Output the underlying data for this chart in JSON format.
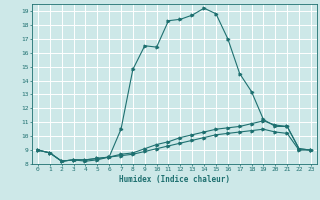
{
  "xlabel": "Humidex (Indice chaleur)",
  "xlim": [
    -0.5,
    23.5
  ],
  "ylim": [
    8.0,
    19.5
  ],
  "yticks": [
    8,
    9,
    10,
    11,
    12,
    13,
    14,
    15,
    16,
    17,
    18,
    19
  ],
  "xticks": [
    0,
    1,
    2,
    3,
    4,
    5,
    6,
    7,
    8,
    9,
    10,
    11,
    12,
    13,
    14,
    15,
    16,
    17,
    18,
    19,
    20,
    21,
    22,
    23
  ],
  "bg_color": "#cde8e8",
  "grid_color": "#ffffff",
  "line_color": "#1e7070",
  "line1_x": [
    0,
    1,
    2,
    3,
    4,
    5,
    6,
    7,
    8,
    9,
    10,
    11,
    12,
    13,
    14,
    15,
    16,
    17,
    18,
    19,
    20,
    21,
    22,
    23
  ],
  "line1_y": [
    9.0,
    8.8,
    8.2,
    8.3,
    8.2,
    8.3,
    8.5,
    10.5,
    14.8,
    16.5,
    16.4,
    18.3,
    18.4,
    18.7,
    19.2,
    18.8,
    17.0,
    14.5,
    13.2,
    11.2,
    10.7,
    10.7,
    9.1,
    9.0
  ],
  "line2_x": [
    0,
    1,
    2,
    3,
    4,
    5,
    6,
    7,
    8,
    9,
    10,
    11,
    12,
    13,
    14,
    15,
    16,
    17,
    18,
    19,
    20,
    21,
    22,
    23
  ],
  "line2_y": [
    9.0,
    8.8,
    8.2,
    8.3,
    8.3,
    8.4,
    8.5,
    8.7,
    8.8,
    9.1,
    9.4,
    9.6,
    9.9,
    10.1,
    10.3,
    10.5,
    10.6,
    10.7,
    10.9,
    11.1,
    10.8,
    10.7,
    9.1,
    9.0
  ],
  "line3_x": [
    0,
    1,
    2,
    3,
    4,
    5,
    6,
    7,
    8,
    9,
    10,
    11,
    12,
    13,
    14,
    15,
    16,
    17,
    18,
    19,
    20,
    21,
    22,
    23
  ],
  "line3_y": [
    9.0,
    8.8,
    8.2,
    8.3,
    8.3,
    8.4,
    8.5,
    8.6,
    8.7,
    8.9,
    9.1,
    9.3,
    9.5,
    9.7,
    9.9,
    10.1,
    10.2,
    10.3,
    10.4,
    10.5,
    10.3,
    10.2,
    9.0,
    9.0
  ]
}
